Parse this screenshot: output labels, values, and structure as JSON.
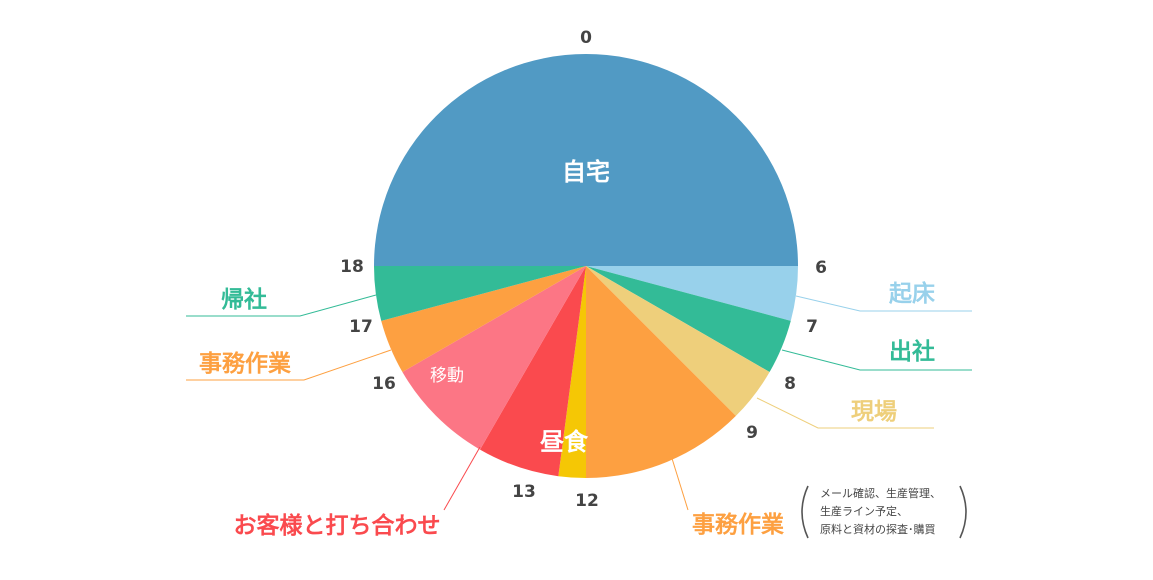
{
  "chart_data": {
    "type": "pie",
    "unit": "hour",
    "slices": [
      {
        "start": 0,
        "end": 6,
        "color": "#519AC4",
        "inner_label": "自宅",
        "outer_label": ""
      },
      {
        "start": 6,
        "end": 7,
        "color": "#98D1EB",
        "inner_label": "",
        "outer_label": "起床"
      },
      {
        "start": 7,
        "end": 8,
        "color": "#33BB97",
        "inner_label": "",
        "outer_label": "出社"
      },
      {
        "start": 8,
        "end": 9,
        "color": "#EECF7B",
        "inner_label": "",
        "outer_label": "現場"
      },
      {
        "start": 9,
        "end": 12,
        "color": "#FDA041",
        "inner_label": "",
        "outer_label": "事務作業"
      },
      {
        "start": 12,
        "end": 12.5,
        "color": "#F5C705",
        "inner_label": "昼食",
        "outer_label": ""
      },
      {
        "start": 12.5,
        "end": 14,
        "color": "#FA4A4E",
        "inner_label": "",
        "outer_label": "お客様と打ち合わせ"
      },
      {
        "start": 14,
        "end": 16,
        "color": "#FC7685",
        "inner_label": "移動",
        "outer_label": ""
      },
      {
        "start": 16,
        "end": 17,
        "color": "#FDA041",
        "inner_label": "",
        "outer_label": "事務作業"
      },
      {
        "start": 17,
        "end": 18,
        "color": "#33BB97",
        "inner_label": "",
        "outer_label": "帰社"
      },
      {
        "start": 18,
        "end": 24,
        "color": "#519AC4",
        "inner_label": "",
        "outer_label": ""
      }
    ],
    "hour_labels": [
      "0",
      "6",
      "7",
      "8",
      "9",
      "12",
      "13",
      "16",
      "17",
      "18"
    ],
    "note_lines": [
      "メール確認、生産管理、",
      "生産ライン予定、",
      "原料と資材の探査･購買"
    ]
  }
}
